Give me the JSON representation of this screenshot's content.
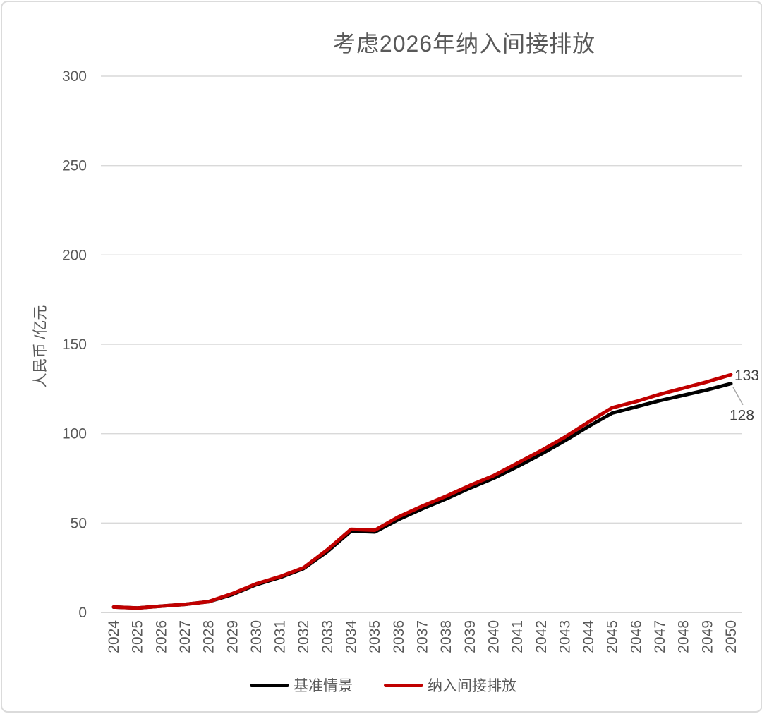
{
  "chart_data": {
    "type": "line",
    "title": "考虑2026年纳入间接排放",
    "ylabel": "人民币 /亿元",
    "xlabel": "",
    "ylim": [
      0,
      300
    ],
    "yticks": [
      0,
      50,
      100,
      150,
      200,
      250,
      300
    ],
    "grid": true,
    "legend_position": "bottom",
    "categories": [
      "2024",
      "2025",
      "2026",
      "2027",
      "2028",
      "2029",
      "2030",
      "2031",
      "2032",
      "2033",
      "2034",
      "2035",
      "2036",
      "2037",
      "2038",
      "2039",
      "2040",
      "2041",
      "2042",
      "2043",
      "2044",
      "2045",
      "2046",
      "2047",
      "2048",
      "2049",
      "2050"
    ],
    "series": [
      {
        "key": "baseline",
        "name": "基准情景",
        "color": "#000000",
        "end_label": "128",
        "leader": true,
        "values": [
          3,
          2.5,
          3.5,
          4.5,
          6,
          10,
          15.5,
          19.5,
          24.5,
          34,
          45.5,
          45,
          52,
          58,
          63.5,
          69.5,
          75,
          81.5,
          88.5,
          96,
          104,
          111.5,
          115,
          118.5,
          121.5,
          124.5,
          128
        ]
      },
      {
        "key": "indirect",
        "name": "纳入间接排放",
        "color": "#C00000",
        "end_label": "133",
        "leader": false,
        "values": [
          3,
          2.5,
          3.5,
          4.5,
          6,
          10.5,
          16,
          20,
          25,
          35,
          46.5,
          46,
          53.5,
          59.5,
          65,
          71,
          76.5,
          83.5,
          90.5,
          98,
          106.5,
          114.5,
          118,
          122,
          125.5,
          129,
          133
        ]
      }
    ]
  },
  "colors": {
    "tick_text": "#595959",
    "gridline": "#D9D9D9",
    "axis_line": "#C9C9C9",
    "leader_line": "#A6A6A6",
    "end_label_text": "#404040"
  }
}
